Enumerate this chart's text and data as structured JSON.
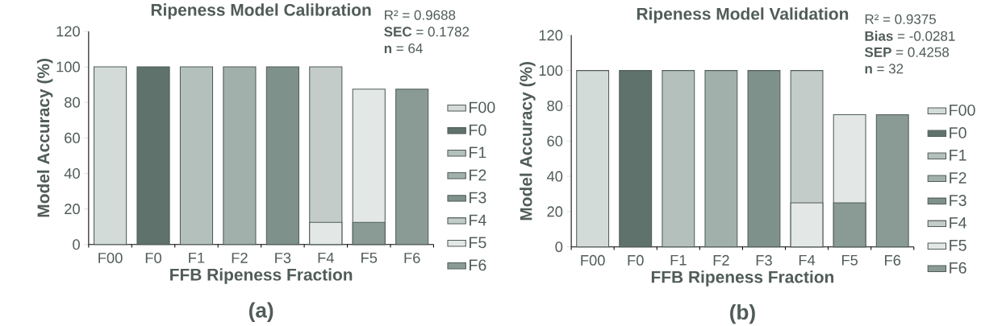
{
  "chart_data": [
    {
      "type": "bar",
      "title": "Ripeness Model Calibration",
      "xlabel": "FFB Ripeness Fraction",
      "ylabel": "Model Accuracy (%)",
      "categories": [
        "F00",
        "F0",
        "F1",
        "F2",
        "F3",
        "F4",
        "F5",
        "F6"
      ],
      "series": [
        {
          "name": "F00",
          "color": "#d3dbd8",
          "values": [
            100,
            null,
            null,
            null,
            null,
            null,
            null,
            null
          ]
        },
        {
          "name": "F0",
          "color": "#5f726c",
          "values": [
            null,
            100,
            null,
            null,
            null,
            null,
            null,
            null
          ]
        },
        {
          "name": "F1",
          "color": "#b4c0bc",
          "values": [
            null,
            null,
            100,
            null,
            null,
            null,
            null,
            null
          ]
        },
        {
          "name": "F2",
          "color": "#a2b0ab",
          "values": [
            null,
            null,
            null,
            100,
            null,
            null,
            null,
            null
          ]
        },
        {
          "name": "F3",
          "color": "#7f918b",
          "values": [
            null,
            null,
            null,
            null,
            100,
            null,
            null,
            null
          ]
        },
        {
          "name": "F4",
          "color": "#c3ccc9",
          "values": [
            null,
            null,
            null,
            null,
            null,
            100,
            null,
            null
          ]
        },
        {
          "name": "F5",
          "color": "#e3e8e6",
          "values": [
            null,
            null,
            null,
            null,
            null,
            12.5,
            87.5,
            null
          ]
        },
        {
          "name": "F6",
          "color": "#8a9b95",
          "values": [
            null,
            null,
            null,
            null,
            null,
            null,
            12.5,
            87.5
          ]
        }
      ],
      "ylim": [
        0,
        120
      ],
      "yticks": [
        0,
        20,
        40,
        60,
        80,
        100,
        120
      ],
      "legend": "right",
      "annotations": [
        "R² = 0.9688",
        "**SEC** = 0.1782",
        "**n** = 64",
        "(a)"
      ]
    },
    {
      "type": "bar",
      "title": "Ripeness Model Validation",
      "xlabel": "FFB Ripeness Fraction",
      "ylabel": "Model Accuracy (%)",
      "categories": [
        "F00",
        "F0",
        "F1",
        "F2",
        "F3",
        "F4",
        "F5",
        "F6"
      ],
      "series": [
        {
          "name": "F00",
          "color": "#d3dbd8",
          "values": [
            100,
            null,
            null,
            null,
            null,
            null,
            null,
            null
          ]
        },
        {
          "name": "F0",
          "color": "#5f726c",
          "values": [
            null,
            100,
            null,
            null,
            null,
            null,
            null,
            null
          ]
        },
        {
          "name": "F1",
          "color": "#b4c0bc",
          "values": [
            null,
            null,
            100,
            null,
            null,
            null,
            null,
            null
          ]
        },
        {
          "name": "F2",
          "color": "#a2b0ab",
          "values": [
            null,
            null,
            null,
            100,
            null,
            null,
            null,
            null
          ]
        },
        {
          "name": "F3",
          "color": "#7f918b",
          "values": [
            null,
            null,
            null,
            null,
            100,
            null,
            null,
            null
          ]
        },
        {
          "name": "F4",
          "color": "#c3ccc9",
          "values": [
            null,
            null,
            null,
            null,
            null,
            100,
            null,
            null
          ]
        },
        {
          "name": "F5",
          "color": "#e3e8e6",
          "values": [
            null,
            null,
            null,
            null,
            null,
            25,
            75,
            null
          ]
        },
        {
          "name": "F6",
          "color": "#8a9b95",
          "values": [
            null,
            null,
            null,
            null,
            null,
            null,
            25,
            75
          ]
        }
      ],
      "ylim": [
        0,
        120
      ],
      "yticks": [
        0,
        20,
        40,
        60,
        80,
        100,
        120
      ],
      "legend": "right",
      "annotations": [
        "R² = 0.9375",
        "**Bias** = -0.0281",
        "**SEP** = 0.4258",
        "**n** = 32",
        "(b)"
      ]
    }
  ]
}
